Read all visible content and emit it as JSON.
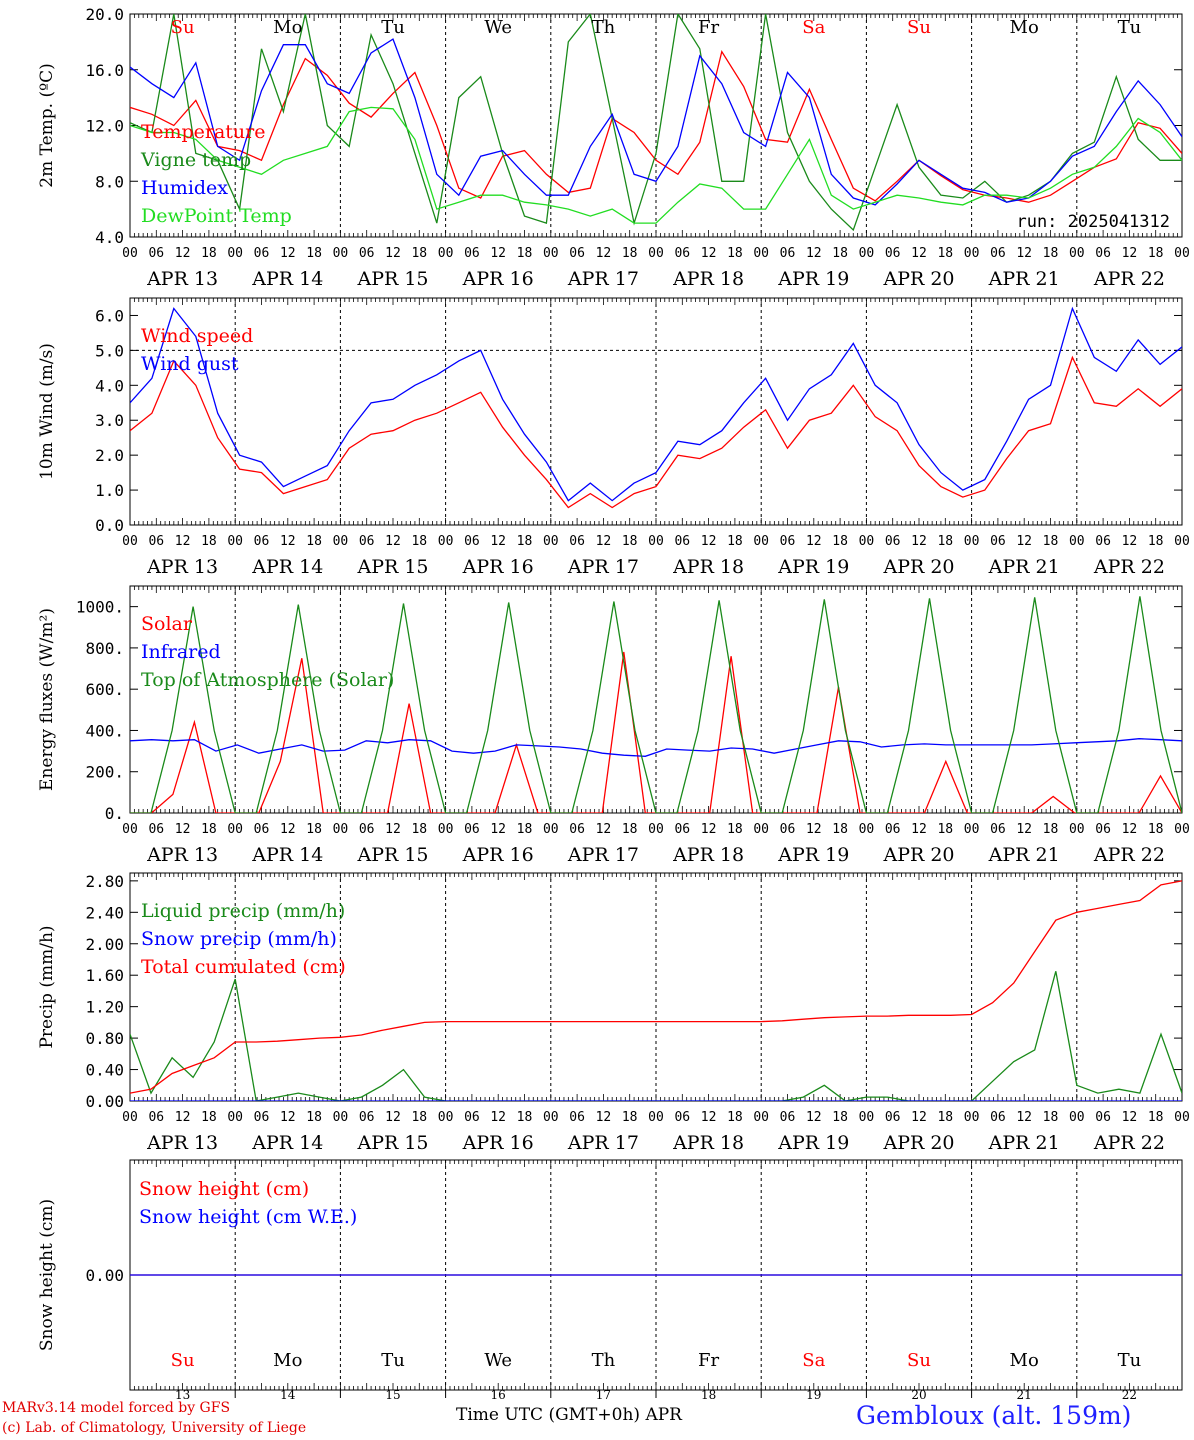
{
  "colors": {
    "red": "#ff0000",
    "green": "#1a8a1a",
    "blue": "#0000ff",
    "lightgreen": "#22dd22",
    "weekday": "#000000",
    "weekend": "#ff0000"
  },
  "days": {
    "dates": [
      "APR 13",
      "APR 14",
      "APR 15",
      "APR 16",
      "APR 17",
      "APR 18",
      "APR 19",
      "APR 20",
      "APR 21",
      "APR 22"
    ],
    "bottom_dates": [
      "13",
      "14",
      "15",
      "16",
      "17",
      "18",
      "19",
      "20",
      "21",
      "22"
    ],
    "weekdays": [
      "Su",
      "Mo",
      "Tu",
      "We",
      "Th",
      "Fr",
      "Sa",
      "Su",
      "Mo",
      "Tu"
    ],
    "weekend": [
      true,
      false,
      false,
      false,
      false,
      false,
      true,
      true,
      false,
      false
    ],
    "hour_labels": [
      "00",
      "06",
      "12",
      "18"
    ],
    "final_hour_label": "00"
  },
  "footer": {
    "model": "MARv3.14 model forced by GFS",
    "credit": "(c) Lab. of Climatology, University of Liege",
    "xaxis_label": "Time UTC (GMT+0h) APR",
    "station": "Gembloux (alt. 159m)"
  },
  "chart_data": [
    {
      "id": "temperature",
      "type": "line",
      "ylabel": "2m Temp. (ºC)",
      "ylim": [
        4,
        20
      ],
      "yticks": [
        4,
        8,
        12,
        16,
        20
      ],
      "ytick_labels": [
        "4.0",
        "8.0",
        "12.0",
        "16.0",
        "20.0"
      ],
      "annotation": "run: 2025041312",
      "x_start": "2025-04-13 00:00 UTC",
      "x_step_hours": 6,
      "series": [
        {
          "name": "Temperature",
          "color": "#ff0000",
          "values": [
            13.3,
            12.8,
            12.0,
            13.8,
            10.5,
            10.2,
            9.5,
            13.5,
            16.8,
            15.6,
            13.6,
            12.6,
            14.3,
            15.8,
            12.0,
            7.5,
            6.8,
            9.8,
            10.2,
            8.5,
            7.2,
            7.5,
            12.5,
            11.5,
            9.5,
            8.5,
            10.8,
            17.3,
            14.8,
            11.0,
            10.8,
            14.6,
            11.0,
            7.5,
            6.6,
            8.0,
            9.5,
            8.4,
            7.4,
            7.0,
            6.8,
            6.5,
            7.0,
            8.0,
            9.0,
            9.6,
            12.2,
            11.8,
            10.0
          ]
        },
        {
          "name": "Vigne temp",
          "color": "#1a8a1a",
          "values": [
            12.2,
            11.5,
            20.0,
            10.0,
            9.5,
            6.0,
            17.5,
            13.0,
            20.0,
            12.0,
            10.5,
            18.5,
            15.0,
            10.0,
            5.0,
            14.0,
            15.5,
            10.0,
            5.5,
            5.0,
            18.0,
            20.0,
            12.5,
            5.0,
            10.0,
            20.0,
            17.5,
            8.0,
            8.0,
            20.0,
            11.5,
            8.0,
            6.0,
            4.5,
            9.0,
            13.5,
            9.0,
            7.0,
            6.8,
            8.0,
            6.5,
            7.0,
            8.0,
            10.0,
            10.8,
            15.5,
            11.0,
            9.5,
            9.5
          ]
        },
        {
          "name": "Humidex",
          "color": "#0000ff",
          "values": [
            16.2,
            15.0,
            14.0,
            16.5,
            10.5,
            9.5,
            14.5,
            17.8,
            17.8,
            15.0,
            14.3,
            17.2,
            18.2,
            14.0,
            8.5,
            7.0,
            9.8,
            10.2,
            8.5,
            7.0,
            7.0,
            10.5,
            12.8,
            8.5,
            8.0,
            10.5,
            17.0,
            15.0,
            11.5,
            10.5,
            15.8,
            14.0,
            8.5,
            6.8,
            6.3,
            7.8,
            9.5,
            8.5,
            7.5,
            7.2,
            6.5,
            6.8,
            8.0,
            9.8,
            10.5,
            13.0,
            15.2,
            13.5,
            11.2
          ]
        },
        {
          "name": "DewPoint Temp",
          "color": "#22dd22",
          "values": [
            12.0,
            11.5,
            11.5,
            11.0,
            9.5,
            9.0,
            8.5,
            9.5,
            10.0,
            10.5,
            13.0,
            13.3,
            13.2,
            11.0,
            6.0,
            6.5,
            7.0,
            7.0,
            6.5,
            6.3,
            6.0,
            5.5,
            6.0,
            5.0,
            5.0,
            6.5,
            7.8,
            7.5,
            6.0,
            6.0,
            8.5,
            11.0,
            7.0,
            6.0,
            6.5,
            7.0,
            6.8,
            6.5,
            6.3,
            7.0,
            7.0,
            6.8,
            7.5,
            8.5,
            9.0,
            10.5,
            12.5,
            11.5,
            9.5
          ]
        }
      ]
    },
    {
      "id": "wind",
      "type": "line",
      "ylabel": "10m Wind (m/s)",
      "ylim": [
        0,
        6.5
      ],
      "yticks": [
        0,
        1,
        2,
        3,
        4,
        5,
        6
      ],
      "ytick_labels": [
        "0.0",
        "1.0",
        "2.0",
        "3.0",
        "4.0",
        "5.0",
        "6.0"
      ],
      "reference_line": 5.0,
      "x_start": "2025-04-13 00:00 UTC",
      "x_step_hours": 6,
      "series": [
        {
          "name": "Wind speed",
          "color": "#ff0000",
          "values": [
            2.7,
            3.2,
            4.7,
            4.0,
            2.5,
            1.6,
            1.5,
            0.9,
            1.1,
            1.3,
            2.2,
            2.6,
            2.7,
            3.0,
            3.2,
            3.5,
            3.8,
            2.8,
            2.0,
            1.3,
            0.5,
            0.9,
            0.5,
            0.9,
            1.1,
            2.0,
            1.9,
            2.2,
            2.8,
            3.3,
            2.2,
            3.0,
            3.2,
            4.0,
            3.1,
            2.7,
            1.7,
            1.1,
            0.8,
            1.0,
            1.9,
            2.7,
            2.9,
            4.8,
            3.5,
            3.4,
            3.9,
            3.4,
            3.9
          ]
        },
        {
          "name": "Wind gust",
          "color": "#0000ff",
          "values": [
            3.5,
            4.2,
            6.2,
            5.4,
            3.2,
            2.0,
            1.8,
            1.1,
            1.4,
            1.7,
            2.7,
            3.5,
            3.6,
            4.0,
            4.3,
            4.7,
            5.0,
            3.6,
            2.6,
            1.8,
            0.7,
            1.2,
            0.7,
            1.2,
            1.5,
            2.4,
            2.3,
            2.7,
            3.5,
            4.2,
            3.0,
            3.9,
            4.3,
            5.2,
            4.0,
            3.5,
            2.3,
            1.5,
            1.0,
            1.3,
            2.4,
            3.6,
            4.0,
            6.2,
            4.8,
            4.4,
            5.3,
            4.6,
            5.1
          ]
        }
      ]
    },
    {
      "id": "energy",
      "type": "line",
      "ylabel": "Energy fluxes (W/m²)",
      "ylim": [
        0,
        1100
      ],
      "yticks": [
        0,
        200,
        400,
        600,
        800,
        1000
      ],
      "ytick_labels": [
        "0.",
        "200.",
        "400.",
        "600.",
        "800.",
        "1000."
      ],
      "x_start": "2025-04-13 00:00 UTC",
      "x_step_hours": 6,
      "series": [
        {
          "name": "Solar",
          "color": "#ff0000",
          "values": [
            0,
            0,
            90,
            440,
            0,
            0,
            0,
            250,
            750,
            0,
            0,
            0,
            0,
            530,
            0,
            0,
            0,
            0,
            330,
            0,
            0,
            0,
            0,
            780,
            0,
            0,
            0,
            0,
            760,
            0,
            0,
            0,
            0,
            610,
            0,
            0,
            0,
            0,
            250,
            0,
            0,
            0,
            0,
            80,
            0,
            0,
            0,
            0,
            180,
            0
          ]
        },
        {
          "name": "Infrared",
          "color": "#0000ff",
          "values": [
            350,
            355,
            350,
            355,
            300,
            330,
            290,
            310,
            330,
            300,
            305,
            350,
            340,
            355,
            350,
            300,
            290,
            300,
            330,
            325,
            320,
            310,
            290,
            280,
            275,
            310,
            305,
            300,
            315,
            310,
            290,
            310,
            330,
            350,
            345,
            320,
            330,
            335,
            330,
            330,
            330,
            330,
            330,
            335,
            340,
            345,
            350,
            360,
            355,
            350
          ]
        },
        {
          "name": "Top of Atmosphere (Solar)",
          "color": "#1a8a1a",
          "values": [
            0,
            0,
            400,
            1000,
            400,
            0,
            0,
            400,
            1010,
            400,
            0,
            0,
            400,
            1015,
            400,
            0,
            0,
            400,
            1020,
            400,
            0,
            0,
            400,
            1025,
            400,
            0,
            0,
            400,
            1030,
            400,
            0,
            0,
            400,
            1035,
            400,
            0,
            0,
            400,
            1040,
            400,
            0,
            0,
            400,
            1045,
            400,
            0,
            0,
            400,
            1050,
            400,
            0
          ]
        }
      ]
    },
    {
      "id": "precip",
      "type": "line",
      "ylabel": "Precip (mm/h)",
      "ylim": [
        0,
        2.9
      ],
      "yticks": [
        0,
        0.4,
        0.8,
        1.2,
        1.6,
        2.0,
        2.4,
        2.8
      ],
      "ytick_labels": [
        "0.00",
        "0.40",
        "0.80",
        "1.20",
        "1.60",
        "2.00",
        "2.40",
        "2.80"
      ],
      "x_start": "2025-04-13 00:00 UTC",
      "x_step_hours": 6,
      "series": [
        {
          "name": "Liquid precip (mm/h)",
          "color": "#1a8a1a",
          "values": [
            0.85,
            0.1,
            0.55,
            0.3,
            0.75,
            1.55,
            0.0,
            0.05,
            0.1,
            0.05,
            0.0,
            0.05,
            0.2,
            0.4,
            0.05,
            0.0,
            0.0,
            0.0,
            0.0,
            0.0,
            0.0,
            0.0,
            0.0,
            0.0,
            0.0,
            0.0,
            0.0,
            0.0,
            0.0,
            0.0,
            0.0,
            0.0,
            0.05,
            0.2,
            0.0,
            0.05,
            0.05,
            0.0,
            0.0,
            0.0,
            0.0,
            0.25,
            0.5,
            0.65,
            1.65,
            0.2,
            0.1,
            0.15,
            0.1,
            0.85,
            0.1
          ]
        },
        {
          "name": "Snow precip (mm/h)",
          "color": "#0000ff",
          "values": [
            0.0,
            0.0,
            0.0,
            0.0,
            0.0,
            0.0,
            0.0,
            0.0,
            0.0,
            0.0,
            0.0,
            0.0,
            0.0,
            0.0,
            0.0,
            0.0,
            0.0,
            0.0,
            0.0,
            0.0,
            0.0,
            0.0,
            0.0,
            0.0,
            0.0,
            0.0,
            0.0,
            0.0,
            0.0,
            0.0,
            0.0,
            0.0,
            0.0,
            0.0,
            0.0,
            0.0,
            0.0,
            0.0,
            0.0,
            0.0,
            0.0,
            0.0,
            0.0,
            0.0,
            0.0,
            0.0,
            0.0,
            0.0,
            0.0,
            0.0,
            0.0
          ]
        },
        {
          "name": "Total cumulated (cm)",
          "color": "#ff0000",
          "values": [
            0.1,
            0.15,
            0.35,
            0.45,
            0.55,
            0.75,
            0.75,
            0.76,
            0.78,
            0.8,
            0.81,
            0.84,
            0.9,
            0.95,
            1.0,
            1.01,
            1.01,
            1.01,
            1.01,
            1.01,
            1.01,
            1.01,
            1.01,
            1.01,
            1.01,
            1.01,
            1.01,
            1.01,
            1.01,
            1.01,
            1.01,
            1.02,
            1.04,
            1.06,
            1.07,
            1.08,
            1.08,
            1.09,
            1.09,
            1.09,
            1.1,
            1.25,
            1.5,
            1.9,
            2.3,
            2.4,
            2.45,
            2.5,
            2.55,
            2.75,
            2.8
          ]
        }
      ]
    },
    {
      "id": "snow",
      "type": "line",
      "ylabel": "Snow height (cm)",
      "ylim": [
        -1,
        1
      ],
      "yticks": [
        0
      ],
      "ytick_labels": [
        "0.00"
      ],
      "x_start": "2025-04-13 00:00 UTC",
      "x_step_hours": 6,
      "series": [
        {
          "name": "Snow height (cm)",
          "color": "#ff0000",
          "values": [
            0,
            0
          ]
        },
        {
          "name": "Snow height (cm W.E.)",
          "color": "#0000ff",
          "values": [
            0,
            0
          ]
        }
      ]
    }
  ]
}
